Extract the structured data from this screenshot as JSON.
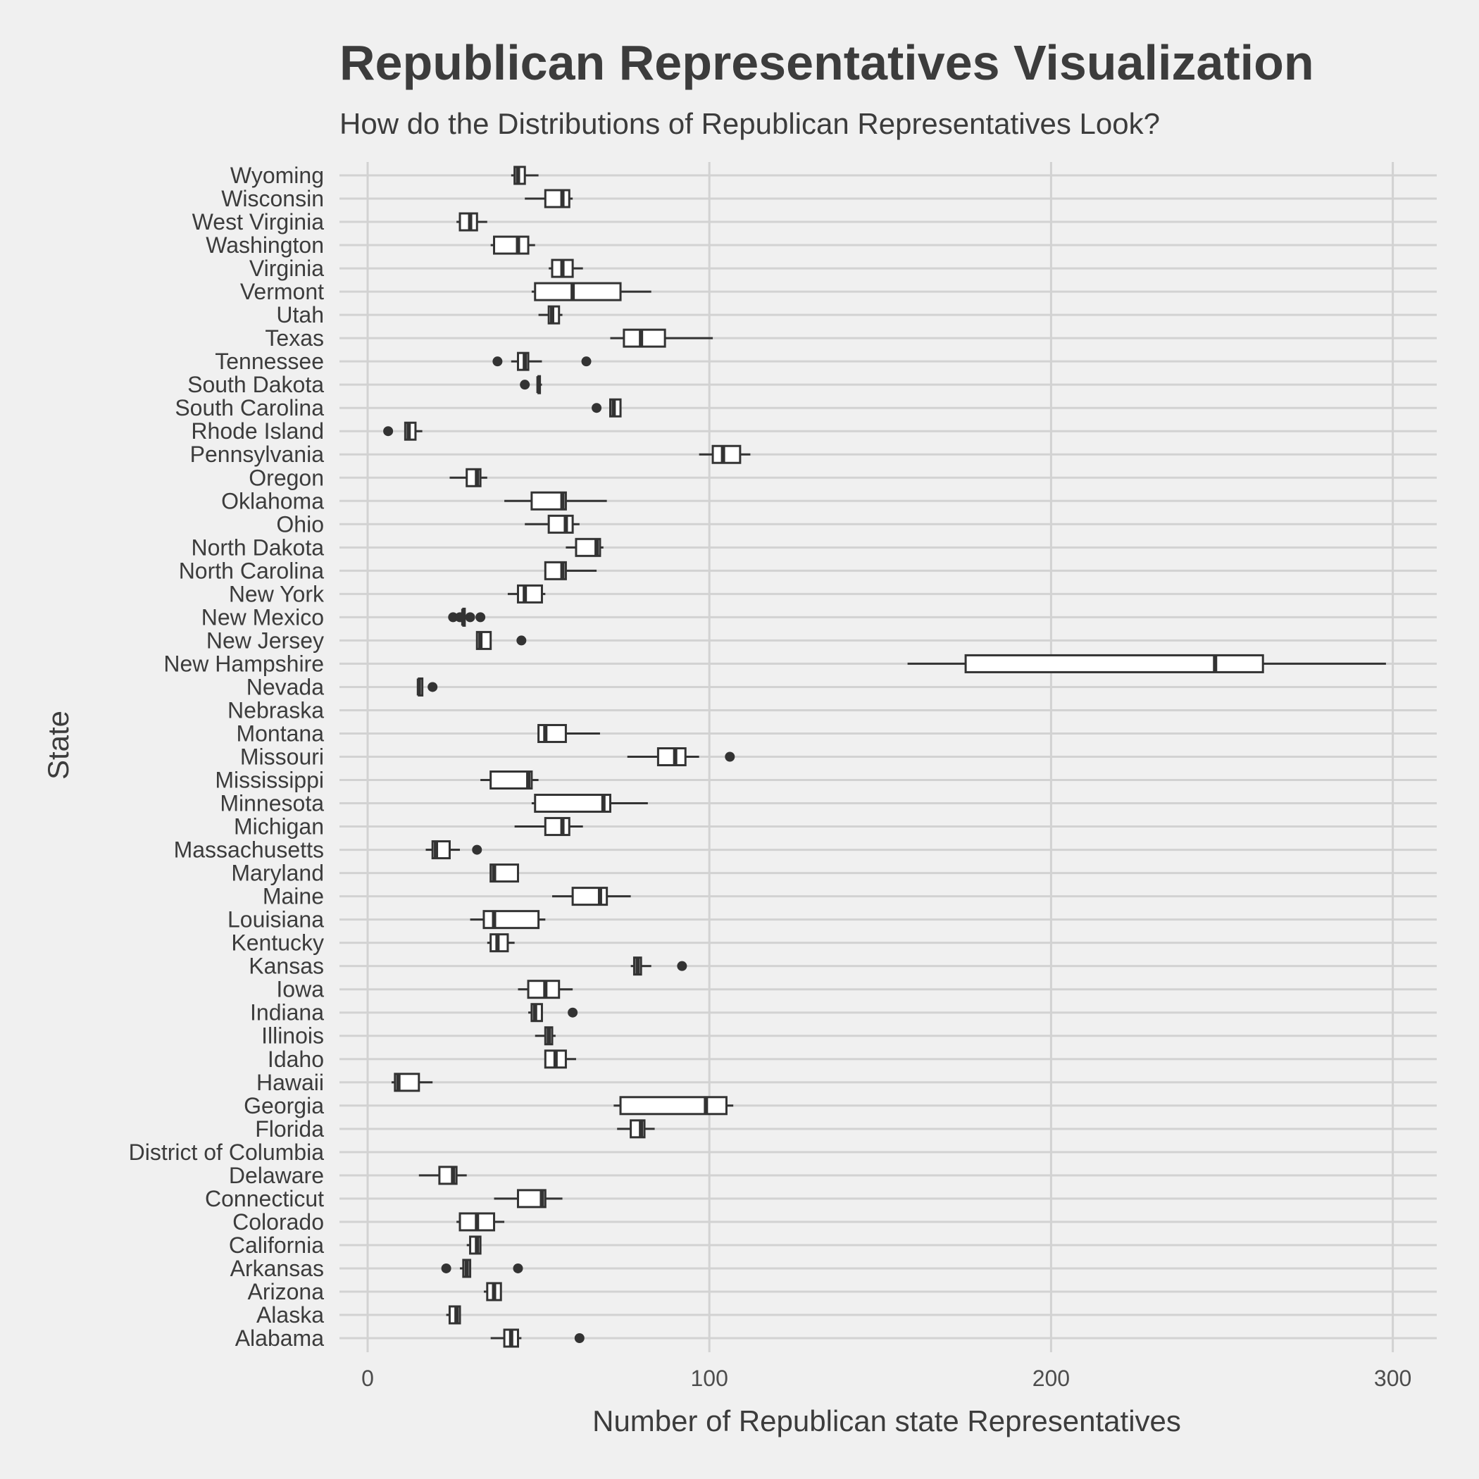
{
  "title": "Republican Representatives Visualization",
  "subtitle": "How do the Distributions of Republican Representatives Look?",
  "chart_data": {
    "type": "boxplot",
    "orientation": "horizontal",
    "xlabel": "Number of Republican state Representatives",
    "ylabel": "State",
    "xlim": [
      -9,
      313
    ],
    "xticks": [
      0,
      100,
      200,
      300
    ],
    "grid": true,
    "legend": "none",
    "colors": {
      "background": "#f0f0f0",
      "grid": "#d2d2d2",
      "box_fill": "#ffffff",
      "stroke": "#333333",
      "text": "#3c3c3c"
    },
    "series": [
      {
        "category": "Alabama",
        "min": 36,
        "q1": 40,
        "median": 42,
        "q3": 44,
        "max": 45,
        "outliers": [
          62
        ]
      },
      {
        "category": "Alaska",
        "min": 23,
        "q1": 24,
        "median": 26,
        "q3": 27,
        "max": 27,
        "outliers": []
      },
      {
        "category": "Arizona",
        "min": 34,
        "q1": 35,
        "median": 37,
        "q3": 39,
        "max": 39,
        "outliers": []
      },
      {
        "category": "Arkansas",
        "min": 27,
        "q1": 28,
        "median": 29,
        "q3": 30,
        "max": 30,
        "outliers": [
          23,
          44
        ]
      },
      {
        "category": "California",
        "min": 29,
        "q1": 30,
        "median": 32,
        "q3": 33,
        "max": 33,
        "outliers": []
      },
      {
        "category": "Colorado",
        "min": 26,
        "q1": 27,
        "median": 32,
        "q3": 37,
        "max": 40,
        "outliers": []
      },
      {
        "category": "Connecticut",
        "min": 37,
        "q1": 44,
        "median": 51,
        "q3": 52,
        "max": 57,
        "outliers": []
      },
      {
        "category": "Delaware",
        "min": 15,
        "q1": 21,
        "median": 25,
        "q3": 26,
        "max": 29,
        "outliers": []
      },
      {
        "category": "District of Columbia",
        "empty": true
      },
      {
        "category": "Florida",
        "min": 73,
        "q1": 77,
        "median": 80,
        "q3": 81,
        "max": 84,
        "outliers": []
      },
      {
        "category": "Georgia",
        "min": 72,
        "q1": 74,
        "median": 99,
        "q3": 105,
        "max": 107,
        "outliers": []
      },
      {
        "category": "Hawaii",
        "min": 7,
        "q1": 8,
        "median": 9,
        "q3": 15,
        "max": 19,
        "outliers": []
      },
      {
        "category": "Idaho",
        "min": 52,
        "q1": 52,
        "median": 55,
        "q3": 58,
        "max": 61,
        "outliers": []
      },
      {
        "category": "Illinois",
        "min": 49,
        "q1": 52,
        "median": 53,
        "q3": 54,
        "max": 55,
        "outliers": []
      },
      {
        "category": "Indiana",
        "min": 47,
        "q1": 48,
        "median": 49,
        "q3": 51,
        "max": 51,
        "outliers": [
          60
        ]
      },
      {
        "category": "Iowa",
        "min": 44,
        "q1": 47,
        "median": 52,
        "q3": 56,
        "max": 60,
        "outliers": []
      },
      {
        "category": "Kansas",
        "min": 77,
        "q1": 78,
        "median": 79,
        "q3": 80,
        "max": 83,
        "outliers": [
          92
        ]
      },
      {
        "category": "Kentucky",
        "min": 35,
        "q1": 36,
        "median": 38,
        "q3": 41,
        "max": 43,
        "outliers": []
      },
      {
        "category": "Louisiana",
        "min": 30,
        "q1": 34,
        "median": 37,
        "q3": 50,
        "max": 52,
        "outliers": []
      },
      {
        "category": "Maine",
        "min": 54,
        "q1": 60,
        "median": 68,
        "q3": 70,
        "max": 77,
        "outliers": []
      },
      {
        "category": "Maryland",
        "min": 36,
        "q1": 36,
        "median": 37,
        "q3": 44,
        "max": 44,
        "outliers": []
      },
      {
        "category": "Massachusetts",
        "min": 17,
        "q1": 19,
        "median": 20,
        "q3": 24,
        "max": 27,
        "outliers": [
          32
        ]
      },
      {
        "category": "Michigan",
        "min": 43,
        "q1": 52,
        "median": 57,
        "q3": 59,
        "max": 63,
        "outliers": []
      },
      {
        "category": "Minnesota",
        "min": 48,
        "q1": 49,
        "median": 69,
        "q3": 71,
        "max": 82,
        "outliers": []
      },
      {
        "category": "Mississippi",
        "min": 33,
        "q1": 36,
        "median": 47,
        "q3": 48,
        "max": 50,
        "outliers": []
      },
      {
        "category": "Missouri",
        "min": 76,
        "q1": 85,
        "median": 90,
        "q3": 93,
        "max": 97,
        "outliers": [
          106
        ]
      },
      {
        "category": "Montana",
        "min": 50,
        "q1": 50,
        "median": 52,
        "q3": 58,
        "max": 68,
        "outliers": []
      },
      {
        "category": "Nebraska",
        "empty": true
      },
      {
        "category": "Nevada",
        "min": 15,
        "q1": 15,
        "median": 15,
        "q3": 16,
        "max": 16,
        "outliers": [
          19
        ]
      },
      {
        "category": "New Hampshire",
        "min": 158,
        "q1": 175,
        "median": 248,
        "q3": 262,
        "max": 298,
        "outliers": []
      },
      {
        "category": "New Jersey",
        "min": 32,
        "q1": 32,
        "median": 33,
        "q3": 36,
        "max": 36,
        "outliers": [
          45
        ]
      },
      {
        "category": "New Mexico",
        "min": 28,
        "q1": 28,
        "median": 28,
        "q3": 28,
        "max": 28,
        "outliers": [
          25,
          27,
          30,
          33
        ]
      },
      {
        "category": "New York",
        "min": 41,
        "q1": 44,
        "median": 46,
        "q3": 51,
        "max": 52,
        "outliers": []
      },
      {
        "category": "North Carolina",
        "min": 52,
        "q1": 52,
        "median": 57,
        "q3": 58,
        "max": 67,
        "outliers": []
      },
      {
        "category": "North Dakota",
        "min": 58,
        "q1": 61,
        "median": 67,
        "q3": 68,
        "max": 69,
        "outliers": []
      },
      {
        "category": "Ohio",
        "min": 46,
        "q1": 53,
        "median": 58,
        "q3": 60,
        "max": 62,
        "outliers": []
      },
      {
        "category": "Oklahoma",
        "min": 40,
        "q1": 48,
        "median": 57,
        "q3": 58,
        "max": 70,
        "outliers": []
      },
      {
        "category": "Oregon",
        "min": 24,
        "q1": 29,
        "median": 32,
        "q3": 33,
        "max": 35,
        "outliers": []
      },
      {
        "category": "Pennsylvania",
        "min": 97,
        "q1": 101,
        "median": 104,
        "q3": 109,
        "max": 112,
        "outliers": []
      },
      {
        "category": "Rhode Island",
        "min": 11,
        "q1": 11,
        "median": 12,
        "q3": 14,
        "max": 16,
        "outliers": [
          6
        ]
      },
      {
        "category": "South Carolina",
        "min": 71,
        "q1": 71,
        "median": 72,
        "q3": 74,
        "max": 74,
        "outliers": [
          67
        ]
      },
      {
        "category": "South Dakota",
        "min": 50,
        "q1": 50,
        "median": 50,
        "q3": 50,
        "max": 51,
        "outliers": [
          46
        ]
      },
      {
        "category": "Tennessee",
        "min": 42,
        "q1": 44,
        "median": 46,
        "q3": 47,
        "max": 51,
        "outliers": [
          38,
          64
        ]
      },
      {
        "category": "Texas",
        "min": 71,
        "q1": 75,
        "median": 80,
        "q3": 87,
        "max": 101,
        "outliers": []
      },
      {
        "category": "Utah",
        "min": 50,
        "q1": 53,
        "median": 54,
        "q3": 56,
        "max": 57,
        "outliers": []
      },
      {
        "category": "Vermont",
        "min": 48,
        "q1": 49,
        "median": 60,
        "q3": 74,
        "max": 83,
        "outliers": []
      },
      {
        "category": "Virginia",
        "min": 53,
        "q1": 54,
        "median": 57,
        "q3": 60,
        "max": 63,
        "outliers": []
      },
      {
        "category": "Washington",
        "min": 36,
        "q1": 37,
        "median": 44,
        "q3": 47,
        "max": 49,
        "outliers": []
      },
      {
        "category": "West Virginia",
        "min": 26,
        "q1": 27,
        "median": 30,
        "q3": 32,
        "max": 35,
        "outliers": []
      },
      {
        "category": "Wisconsin",
        "min": 46,
        "q1": 52,
        "median": 57,
        "q3": 59,
        "max": 60,
        "outliers": []
      },
      {
        "category": "Wyoming",
        "min": 42,
        "q1": 43,
        "median": 44,
        "q3": 46,
        "max": 50,
        "outliers": []
      }
    ]
  }
}
